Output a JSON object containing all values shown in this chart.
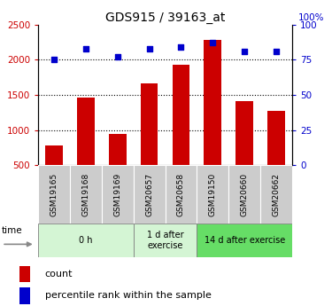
{
  "title": "GDS915 / 39163_at",
  "categories": [
    "GSM19165",
    "GSM19168",
    "GSM19169",
    "GSM20657",
    "GSM20658",
    "GSM19150",
    "GSM20660",
    "GSM20662"
  ],
  "counts": [
    780,
    1460,
    940,
    1660,
    1930,
    2280,
    1410,
    1270
  ],
  "percentiles": [
    75,
    83,
    77,
    83,
    84,
    87,
    81,
    81
  ],
  "groups": [
    {
      "label": "0 h",
      "start": 0,
      "end": 3,
      "color": "#c8edc8"
    },
    {
      "label": "1 d after\nexercise",
      "start": 3,
      "end": 5,
      "color": "#c8edc8"
    },
    {
      "label": "14 d after exercise",
      "start": 5,
      "end": 8,
      "color": "#5cd65c"
    }
  ],
  "ylim_left": [
    500,
    2500
  ],
  "ylim_right": [
    0,
    100
  ],
  "yticks_left": [
    500,
    1000,
    1500,
    2000,
    2500
  ],
  "yticks_right": [
    0,
    25,
    50,
    75,
    100
  ],
  "bar_color": "#cc0000",
  "dot_color": "#0000cc",
  "bar_width": 0.55,
  "bg_color": "#ffffff",
  "tick_label_color_left": "#cc0000",
  "tick_label_color_right": "#0000cc",
  "legend_bar_label": "count",
  "legend_dot_label": "percentile rank within the sample",
  "time_label": "time",
  "figsize": [
    3.75,
    3.45
  ],
  "dpi": 100,
  "gridlines_at": [
    1000,
    1500,
    2000
  ],
  "gray_box_color": "#cccccc",
  "group0_color": "#d4f5d4",
  "group1_color": "#d4f5d4",
  "group2_color": "#66dd66"
}
